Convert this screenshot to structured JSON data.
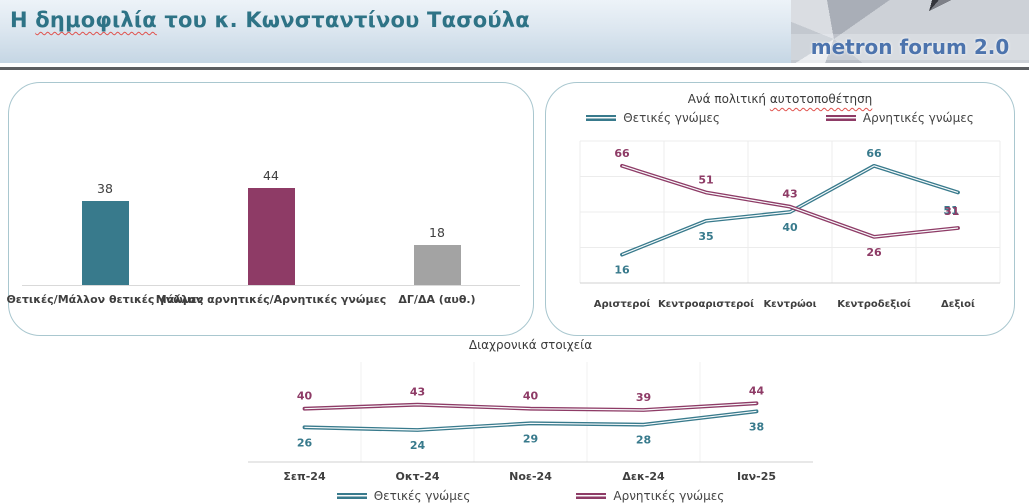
{
  "header": {
    "title": {
      "prefix": "Η ",
      "underlined": "δημοφιλία",
      "suffix": " του κ. Κωνσταντίνου Τασούλα"
    },
    "logo_text": "metron forum 2.0"
  },
  "colors": {
    "positive": "#387a8c",
    "negative": "#8e3b66",
    "neutral": "#a3a3a3",
    "spellcheck_underline": "#e0514c",
    "header_title": "#2e7386",
    "logo_text": "#4d74ad"
  },
  "chart_data": [
    {
      "id": "overall-opinion",
      "type": "bar",
      "categories": [
        "Θετικές/Μάλλον θετικές γνώμες",
        "Μάλλον αρνητικές/Αρνητικές γνώμες",
        "ΔΓ/ΔΑ (αυθ.)"
      ],
      "values": [
        38,
        44,
        18
      ],
      "bar_colors": [
        "#387a8c",
        "#8e3b66",
        "#a3a3a3"
      ],
      "ylim": [
        0,
        90
      ],
      "grid": false
    },
    {
      "id": "by-political-position",
      "type": "line",
      "title": {
        "prefix": "Ανά πολιτική ",
        "underlined": "αυτοτοποθέτηση"
      },
      "categories": [
        "Αριστεροί",
        "Κεντροαριστεροί",
        "Κεντρώοι",
        "Κεντροδεξιοί",
        "Δεξιοί"
      ],
      "series": [
        {
          "name": "Θετικές γνώμες",
          "color": "#387a8c",
          "values": [
            16,
            35,
            40,
            66,
            51
          ],
          "label_sides": [
            "below",
            "below",
            "below",
            "above",
            "merge"
          ]
        },
        {
          "name": "Αρνητικές γνώμες",
          "color": "#8e3b66",
          "values": [
            66,
            51,
            43,
            26,
            31
          ],
          "label_sides": [
            "above",
            "above",
            "above",
            "below",
            "merge"
          ]
        }
      ],
      "ylim": [
        0,
        80
      ],
      "grid": true,
      "legend_position": "top"
    },
    {
      "id": "over-time",
      "type": "line",
      "title": "Διαχρονικά στοιχεία",
      "categories": [
        "Σεπ-24",
        "Οκτ-24",
        "Νοε-24",
        "Δεκ-24",
        "Ιαν-25"
      ],
      "series": [
        {
          "name": "Θετικές γνώμες",
          "color": "#387a8c",
          "values": [
            26,
            24,
            29,
            28,
            38
          ],
          "label_sides": [
            "below",
            "below",
            "below",
            "below",
            "below"
          ]
        },
        {
          "name": "Αρνητικές γνώμες",
          "color": "#8e3b66",
          "values": [
            40,
            43,
            40,
            39,
            44
          ],
          "label_sides": [
            "above",
            "above",
            "above",
            "above",
            "above"
          ]
        }
      ],
      "ylim": [
        0,
        75
      ],
      "grid": false,
      "legend_position": "bottom"
    }
  ]
}
